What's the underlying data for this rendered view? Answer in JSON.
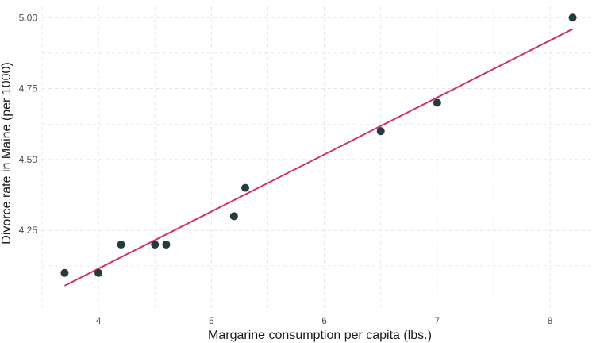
{
  "chart_data": {
    "type": "scatter",
    "title": "",
    "xlabel": "Margarine consumption per capita (lbs.)",
    "ylabel": "Divorce rate in Maine (per 1000)",
    "xlim": [
      3.5,
      8.4
    ],
    "ylim": [
      3.965,
      5.04
    ],
    "x_ticks": [
      4,
      5,
      6,
      7,
      8
    ],
    "x_tick_labels": [
      "4",
      "5",
      "6",
      "7",
      "8"
    ],
    "y_ticks": [
      4.25,
      4.5,
      4.75,
      5.0
    ],
    "y_tick_labels": [
      "4.25",
      "4.50",
      "4.75",
      "5.00"
    ],
    "grid": true,
    "legend": "none",
    "points": [
      {
        "x": 3.7,
        "y": 4.1
      },
      {
        "x": 4.0,
        "y": 4.1
      },
      {
        "x": 4.2,
        "y": 4.2
      },
      {
        "x": 4.5,
        "y": 4.2
      },
      {
        "x": 4.6,
        "y": 4.2
      },
      {
        "x": 5.2,
        "y": 4.3
      },
      {
        "x": 5.3,
        "y": 4.4
      },
      {
        "x": 6.5,
        "y": 4.6
      },
      {
        "x": 7.0,
        "y": 4.7
      },
      {
        "x": 8.2,
        "y": 5.0
      }
    ],
    "trend_line": {
      "x": [
        3.7,
        8.2
      ],
      "y": [
        4.055,
        4.96
      ]
    },
    "colors": {
      "points": "#253b3f",
      "trend_line": "#d0306b",
      "grid": "#e3e3e3",
      "tick_text": "#4d4d4d",
      "axis_title": "#1a1a1a"
    }
  }
}
